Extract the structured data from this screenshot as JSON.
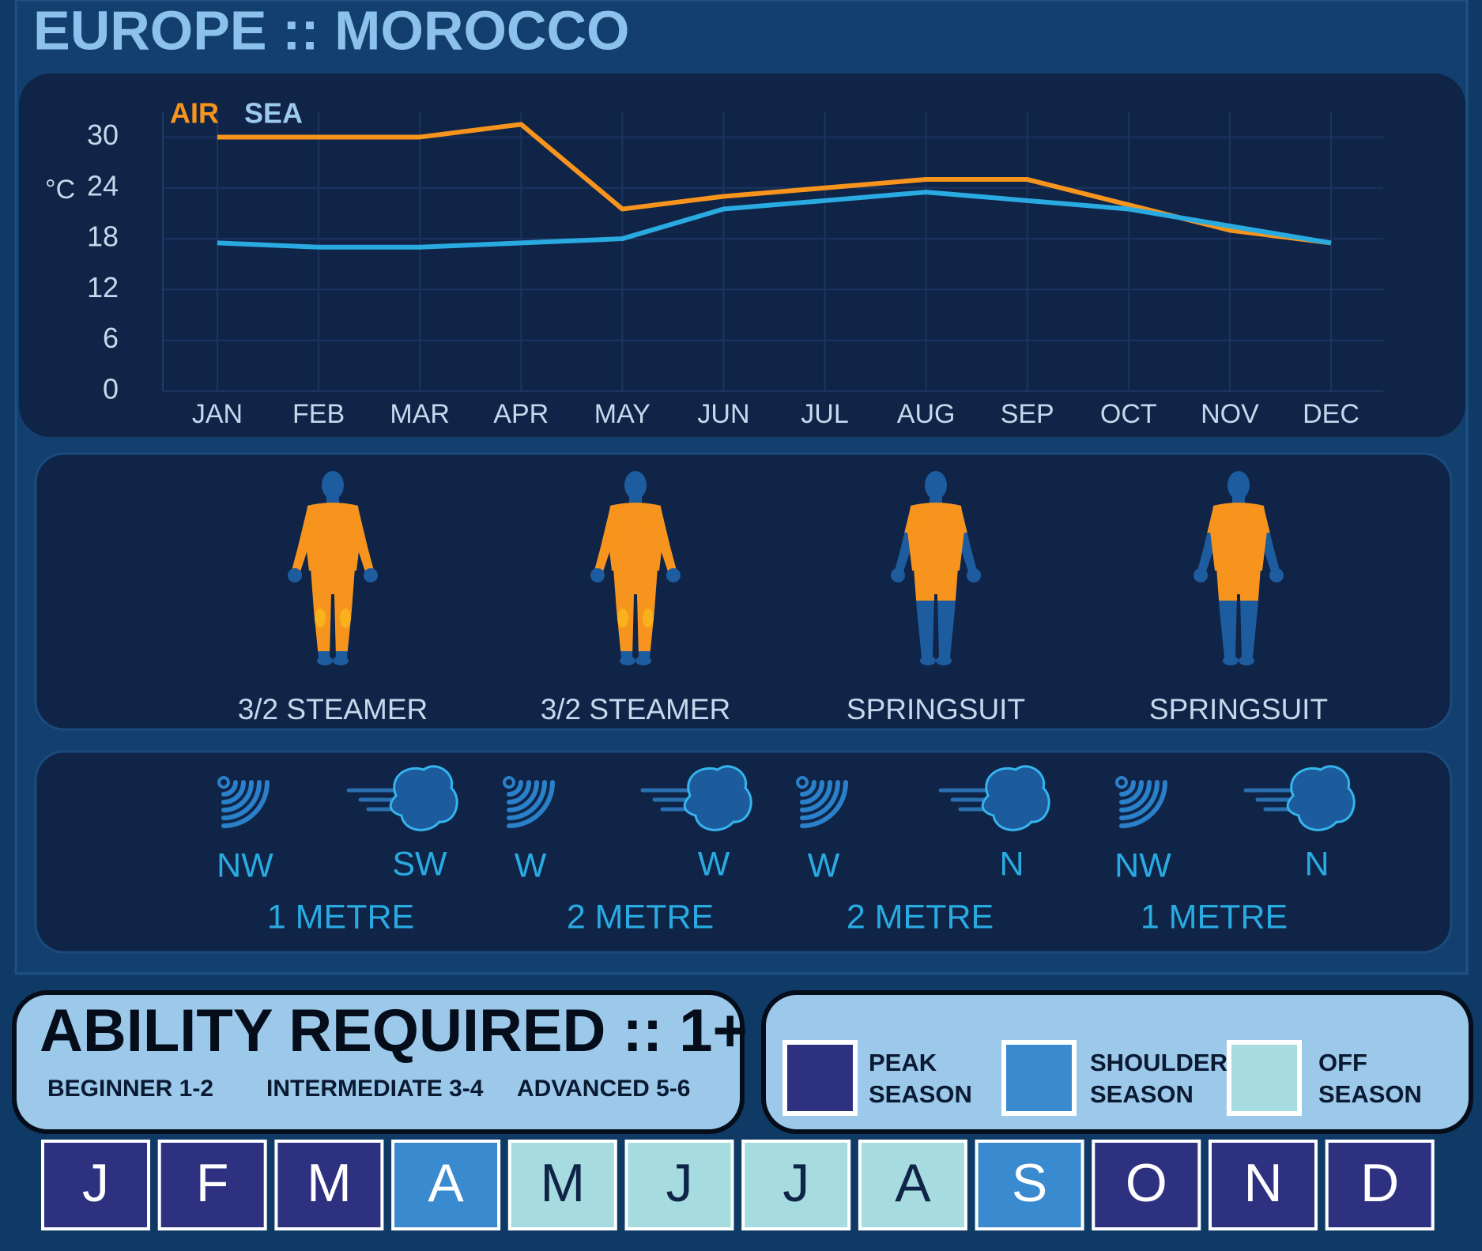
{
  "header": {
    "title": "EUROPE :: MOROCCO"
  },
  "chart_data": {
    "type": "line",
    "y_label": "°C",
    "categories": [
      "JAN",
      "FEB",
      "MAR",
      "APR",
      "MAY",
      "JUN",
      "JUL",
      "AUG",
      "SEP",
      "OCT",
      "NOV",
      "DEC"
    ],
    "series": [
      {
        "name": "AIR",
        "color": "#f7941d",
        "values": [
          30,
          30,
          30,
          31.5,
          21.5,
          23,
          24,
          25,
          25,
          22,
          19,
          17.5
        ]
      },
      {
        "name": "SEA",
        "color": "#29abe2",
        "values": [
          17.5,
          17,
          17,
          17.5,
          18,
          21.5,
          22.5,
          23.5,
          22.5,
          21.5,
          19.5,
          17.5
        ]
      }
    ],
    "ylim": [
      0,
      32
    ],
    "yticks": [
      0,
      6,
      12,
      18,
      24,
      30
    ],
    "grid": true
  },
  "wetsuits": [
    {
      "label": "3/2 STEAMER"
    },
    {
      "label": "3/2 STEAMER"
    },
    {
      "label": "SPRINGSUIT"
    },
    {
      "label": "SPRINGSUIT"
    }
  ],
  "conditions": [
    {
      "wind": "NW",
      "swell": "SW",
      "size": "1 METRE"
    },
    {
      "wind": "W",
      "swell": "W",
      "size": "2 METRE"
    },
    {
      "wind": "W",
      "swell": "N",
      "size": "2 METRE"
    },
    {
      "wind": "NW",
      "swell": "N",
      "size": "1 METRE"
    }
  ],
  "ability": {
    "title": "ABILITY REQUIRED :: 1+",
    "levels": [
      "BEGINNER 1-2",
      "INTERMEDIATE 3-4",
      "ADVANCED 5-6"
    ]
  },
  "seasons": [
    {
      "label": "PEAK\nSEASON",
      "color": "#2e3180"
    },
    {
      "label": "SHOULDER\nSEASON",
      "color": "#3a8ad0"
    },
    {
      "label": "OFF\nSEASON",
      "color": "#a6dcdf"
    }
  ],
  "months": [
    {
      "letter": "J",
      "color": "#2e3180"
    },
    {
      "letter": "F",
      "color": "#2e3180"
    },
    {
      "letter": "M",
      "color": "#2e3180"
    },
    {
      "letter": "A",
      "color": "#3a8ad0"
    },
    {
      "letter": "M",
      "color": "#a6dcdf"
    },
    {
      "letter": "J",
      "color": "#a6dcdf"
    },
    {
      "letter": "J",
      "color": "#a6dcdf"
    },
    {
      "letter": "A",
      "color": "#a6dcdf"
    },
    {
      "letter": "S",
      "color": "#3a8ad0"
    },
    {
      "letter": "O",
      "color": "#2e3180"
    },
    {
      "letter": "N",
      "color": "#2e3180"
    },
    {
      "letter": "D",
      "color": "#2e3180"
    }
  ]
}
